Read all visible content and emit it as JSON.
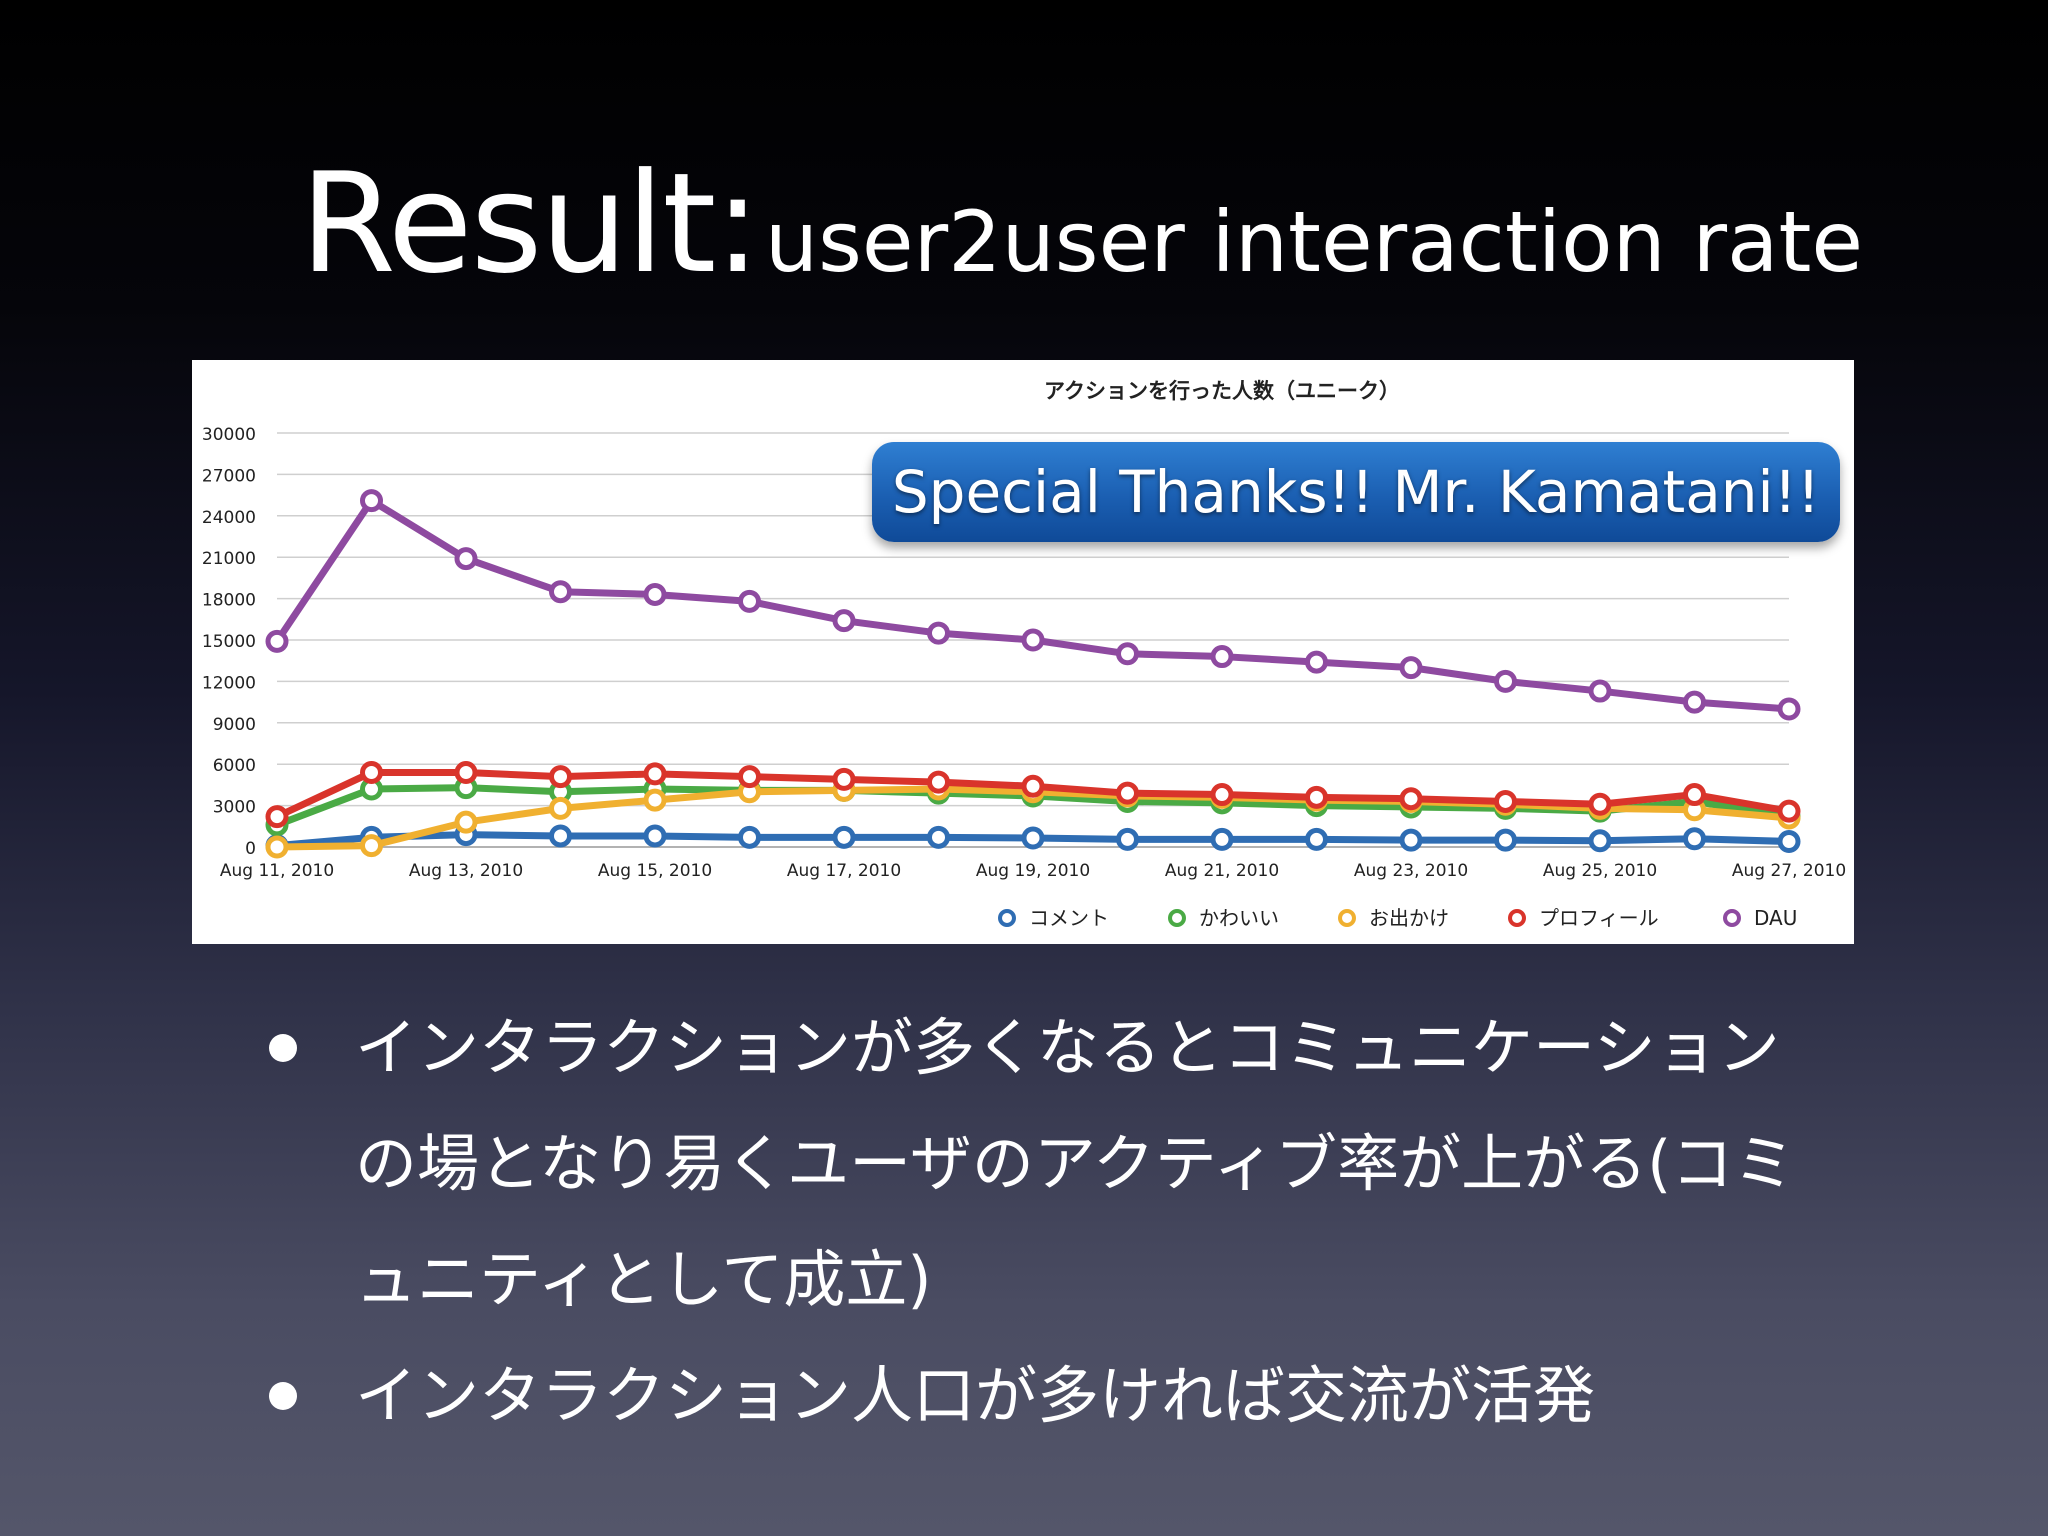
{
  "slide": {
    "title_main": "Result:",
    "title_sub": "user2user interaction rate"
  },
  "callout": {
    "text": "Special Thanks!! Mr. Kamatani!!"
  },
  "bullets": [
    "インタラクションが多くなるとコミュニケーションの場となり易くユーザのアクティブ率が上がる(コミュニティとして成立)",
    "インタラクション人口が多ければ交流が活発"
  ],
  "chart_data": {
    "type": "line",
    "title": "アクションを行った人数（ユニーク）",
    "xlabel": "",
    "ylabel": "",
    "ylim": [
      0,
      30000
    ],
    "yticks": [
      0,
      3000,
      6000,
      9000,
      12000,
      15000,
      18000,
      21000,
      24000,
      27000,
      30000
    ],
    "grid": true,
    "legend_position": "bottom-right",
    "x": [
      "Aug 11, 2010",
      "Aug 12, 2010",
      "Aug 13, 2010",
      "Aug 14, 2010",
      "Aug 15, 2010",
      "Aug 16, 2010",
      "Aug 17, 2010",
      "Aug 18, 2010",
      "Aug 19, 2010",
      "Aug 20, 2010",
      "Aug 21, 2010",
      "Aug 22, 2010",
      "Aug 23, 2010",
      "Aug 24, 2010",
      "Aug 25, 2010",
      "Aug 26, 2010",
      "Aug 27, 2010"
    ],
    "xtick_labels": [
      "Aug 11, 2010",
      "Aug 13, 2010",
      "Aug 15, 2010",
      "Aug 17, 2010",
      "Aug 19, 2010",
      "Aug 21, 2010",
      "Aug 23, 2010",
      "Aug 25, 2010",
      "Aug 27, 2010"
    ],
    "series": [
      {
        "name": "コメント",
        "color": "#2f6db3",
        "values": [
          100,
          700,
          900,
          800,
          800,
          700,
          700,
          700,
          650,
          550,
          550,
          550,
          500,
          500,
          450,
          600,
          400
        ]
      },
      {
        "name": "かわいい",
        "color": "#4aaa45",
        "values": [
          1600,
          4200,
          4300,
          4000,
          4200,
          4100,
          4100,
          3900,
          3700,
          3300,
          3200,
          3000,
          2900,
          2800,
          2600,
          3300,
          2200
        ]
      },
      {
        "name": "お出かけ",
        "color": "#f0b030",
        "values": [
          0,
          100,
          1800,
          2800,
          3400,
          4000,
          4100,
          4200,
          4000,
          3700,
          3600,
          3400,
          3300,
          3100,
          2800,
          2700,
          2100
        ]
      },
      {
        "name": "プロフィール",
        "color": "#d9342b",
        "values": [
          2200,
          5400,
          5400,
          5100,
          5300,
          5100,
          4900,
          4700,
          4400,
          3900,
          3800,
          3600,
          3500,
          3300,
          3100,
          3800,
          2600
        ]
      },
      {
        "name": "DAU",
        "color": "#8e4aa0",
        "values": [
          14900,
          25100,
          20900,
          18500,
          18300,
          17800,
          16400,
          15500,
          15000,
          14000,
          13800,
          13400,
          13000,
          12000,
          11300,
          10500,
          10000
        ]
      }
    ]
  }
}
